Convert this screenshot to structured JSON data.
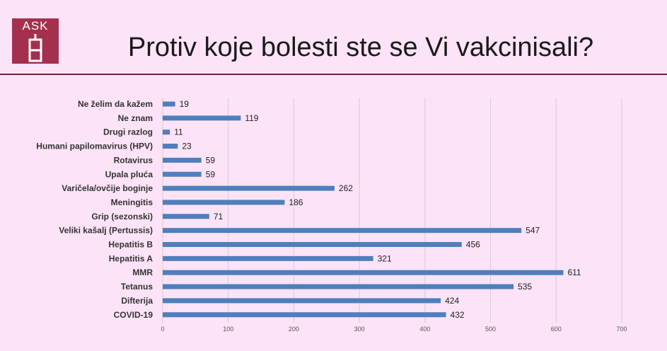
{
  "header": {
    "logo_text": "ASK",
    "title": "Protiv koje bolesti ste se Vi vakcinisali?"
  },
  "colors": {
    "background": "#fde3f7",
    "bar": "#4f7fbd",
    "logo": "#a4304f",
    "rule": "#7b1b33",
    "grid": "#d6cbd2"
  },
  "chart_data": {
    "type": "bar",
    "orientation": "horizontal",
    "title": "Protiv koje bolesti ste se Vi vakcinisali?",
    "categories": [
      "Ne želim da kažem",
      "Ne znam",
      "Drugi razlog",
      "Humani papilomavirus (HPV)",
      "Rotavirus",
      "Upala pluća",
      "Varičela/ovčije boginje",
      "Meningitis",
      "Grip (sezonski)",
      "Veliki kašalj (Pertussis)",
      "Hepatitis B",
      "Hepatitis A",
      "MMR",
      "Tetanus",
      "Difterija",
      "COVID-19"
    ],
    "values": [
      19,
      119,
      11,
      23,
      59,
      59,
      262,
      186,
      71,
      547,
      456,
      321,
      611,
      535,
      424,
      432
    ],
    "xlim": [
      0,
      700
    ],
    "xticks": [
      0,
      100,
      200,
      300,
      400,
      500,
      600,
      700
    ],
    "grid": true,
    "data_labels": true,
    "legend": "none"
  }
}
